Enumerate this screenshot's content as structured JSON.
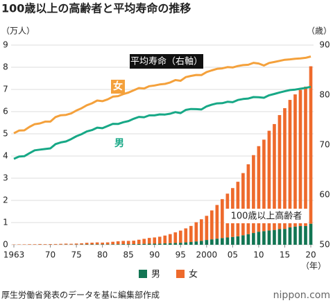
{
  "chart_data": {
    "type": "combo",
    "title": "100歳以上の高齢者と平均寿命の推移",
    "y_label": "（万人）",
    "y2_label": "（歳）",
    "x_label": "（年）",
    "source": "厚生労働省発表のデータを基に編集部作成",
    "logo": "nippon.com",
    "annotations": [
      "平均寿命（右軸）",
      "100歳以上高齢者"
    ],
    "categories": [
      "1963",
      null,
      null,
      null,
      null,
      null,
      null,
      "70",
      null,
      null,
      null,
      null,
      "75",
      null,
      null,
      null,
      null,
      "80",
      null,
      null,
      null,
      null,
      "85",
      null,
      null,
      null,
      null,
      "90",
      null,
      null,
      null,
      null,
      "95",
      null,
      null,
      null,
      null,
      "2000",
      null,
      null,
      null,
      null,
      "05",
      null,
      null,
      null,
      null,
      "10",
      null,
      null,
      null,
      null,
      "15",
      null,
      null,
      null,
      null,
      "20"
    ],
    "ylim": [
      0,
      9
    ],
    "yticks": [
      0,
      1,
      2,
      3,
      4,
      5,
      6,
      7,
      8,
      9
    ],
    "y2lim": [
      50,
      90
    ],
    "y2ticks": [
      50,
      60,
      70,
      80,
      90
    ],
    "grid": true,
    "series": [
      {
        "name": "男",
        "type": "bar",
        "color": "#127553",
        "values": [
          0.003,
          0.004,
          0.004,
          0.005,
          0.005,
          0.007,
          0.006,
          0.006,
          0.007,
          0.008,
          0.01,
          0.008,
          0.01,
          0.012,
          0.015,
          0.016,
          0.018,
          0.017,
          0.018,
          0.022,
          0.025,
          0.028,
          0.028,
          0.029,
          0.036,
          0.042,
          0.046,
          0.048,
          0.052,
          0.061,
          0.07,
          0.079,
          0.089,
          0.107,
          0.124,
          0.15,
          0.175,
          0.216,
          0.245,
          0.275,
          0.302,
          0.33,
          0.352,
          0.38,
          0.428,
          0.478,
          0.53,
          0.587,
          0.615,
          0.645,
          0.667,
          0.703,
          0.714,
          0.782,
          0.82,
          0.843,
          0.846,
          0.948
        ]
      },
      {
        "name": "女",
        "type": "bar",
        "color": "#ee6a2c",
        "values": [
          0.012,
          0.015,
          0.016,
          0.02,
          0.02,
          0.026,
          0.022,
          0.025,
          0.027,
          0.033,
          0.04,
          0.035,
          0.045,
          0.055,
          0.073,
          0.078,
          0.088,
          0.08,
          0.089,
          0.113,
          0.131,
          0.146,
          0.147,
          0.156,
          0.191,
          0.225,
          0.262,
          0.282,
          0.311,
          0.354,
          0.41,
          0.48,
          0.549,
          0.631,
          0.725,
          0.866,
          0.974,
          1.088,
          1.303,
          1.518,
          1.754,
          1.974,
          2.203,
          2.46,
          2.802,
          3.15,
          3.51,
          3.858,
          4.122,
          4.493,
          4.773,
          5.142,
          5.443,
          5.747,
          5.957,
          6.136,
          6.281,
          7.097
        ]
      },
      {
        "name": "女",
        "type": "line",
        "axis": "y2",
        "color": "#f4a13c",
        "values": [
          72.34,
          72.87,
          72.92,
          73.61,
          74.15,
          74.3,
          74.67,
          74.66,
          75.58,
          75.94,
          76.02,
          76.31,
          76.89,
          77.35,
          77.95,
          78.33,
          78.89,
          78.76,
          79.13,
          79.66,
          79.78,
          80.18,
          80.48,
          80.93,
          81.39,
          81.3,
          81.77,
          81.9,
          82.11,
          82.22,
          82.51,
          82.98,
          82.85,
          83.59,
          83.82,
          84.01,
          83.99,
          84.6,
          84.93,
          85.23,
          85.33,
          85.59,
          85.52,
          85.81,
          85.99,
          86.05,
          86.44,
          86.3,
          85.9,
          86.41,
          86.61,
          86.83,
          87.05,
          87.14,
          87.26,
          87.32,
          87.45,
          87.71
        ]
      },
      {
        "name": "男",
        "type": "line",
        "axis": "y2",
        "color": "#17a886",
        "values": [
          67.21,
          67.67,
          67.74,
          68.35,
          68.91,
          69.05,
          69.18,
          69.31,
          70.17,
          70.5,
          70.7,
          71.16,
          71.73,
          72.15,
          72.69,
          72.97,
          73.46,
          73.35,
          73.79,
          74.22,
          74.2,
          74.54,
          74.78,
          75.23,
          75.61,
          75.54,
          75.91,
          75.92,
          76.11,
          76.09,
          76.25,
          76.57,
          76.38,
          77.01,
          77.19,
          77.16,
          77.1,
          77.72,
          78.07,
          78.32,
          78.36,
          78.64,
          78.56,
          79.0,
          79.19,
          79.29,
          79.59,
          79.55,
          79.44,
          79.94,
          80.21,
          80.5,
          80.75,
          80.98,
          81.09,
          81.25,
          81.41,
          81.64
        ]
      }
    ]
  }
}
